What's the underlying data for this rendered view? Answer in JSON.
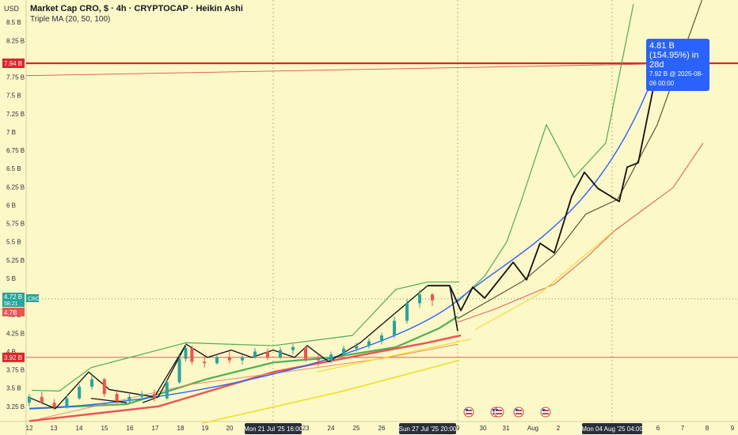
{
  "header": {
    "title": "Market Cap CRO, $ · 4h · CRYPTOCAP · Heikin Ashi",
    "indicator": "Triple MA (20, 50, 100)"
  },
  "currency": "USD",
  "price_tags": {
    "resistance": "7.94 B",
    "current": "4.72 B",
    "countdown": "58:21",
    "symbol": "CRO",
    "last": "4.7B",
    "support": "3.92 B"
  },
  "callout": {
    "line1": "4.81 B (154.95%) in 28d",
    "line2": "7.92 B @ 2025-08-06  00:00"
  },
  "x_highlights": [
    "Mon 21 Jul '25  16:00",
    "Sun 27 Jul '25  20:00",
    "Mon 04 Aug '25  04:00"
  ],
  "colors": {
    "background": "#fdf8c8",
    "resistance_line": "#e0242c",
    "support_line": "#e0242c",
    "projection_curve": "#2962ff",
    "callout": "#2962ff",
    "ma_green": "#4caf50",
    "ma_yellow": "#f0e020",
    "ma_red": "#ef5350",
    "candle_up": "#26a69a",
    "candle_down": "#ef5350"
  },
  "chart_data": {
    "type": "candlestick",
    "title": "Market Cap CRO, $ · 4h · CRYPTOCAP · Heikin Ashi",
    "y_unit": "B USD",
    "ylim": [
      3.0,
      8.85
    ],
    "y_ticks": [
      "3.25 B",
      "3.5 B",
      "3.75 B",
      "4 B",
      "4.25 B",
      "4.5 B",
      "4.75 B",
      "5 B",
      "5.25 B",
      "5.5 B",
      "5.75 B",
      "6 B",
      "6.25 B",
      "6.5 B",
      "6.75 B",
      "7 B",
      "7.25 B",
      "7.5 B",
      "7.75 B",
      "8 B",
      "8.25 B",
      "8.5 B"
    ],
    "x_ticks": [
      "12",
      "13",
      "14",
      "15",
      "16",
      "17",
      "18",
      "19",
      "20",
      "23",
      "24",
      "25",
      "26",
      "9",
      "30",
      "31",
      "Aug",
      "2",
      "6",
      "7",
      "8",
      "9"
    ],
    "horizontal_levels": [
      {
        "name": "resistance",
        "value": 7.94
      },
      {
        "name": "support",
        "value": 3.92
      }
    ],
    "projection_target": {
      "value": 7.92,
      "date": "2025-08-06 00:00",
      "change": "4.81 B (154.95%) in 28d"
    },
    "candles": [
      {
        "day": 12.0,
        "o": 3.3,
        "h": 3.42,
        "l": 3.25,
        "c": 3.38
      },
      {
        "day": 12.5,
        "o": 3.38,
        "h": 3.45,
        "l": 3.28,
        "c": 3.3
      },
      {
        "day": 13.0,
        "o": 3.3,
        "h": 3.35,
        "l": 3.2,
        "c": 3.24
      },
      {
        "day": 13.5,
        "o": 3.24,
        "h": 3.4,
        "l": 3.22,
        "c": 3.36
      },
      {
        "day": 14.0,
        "o": 3.36,
        "h": 3.55,
        "l": 3.34,
        "c": 3.52
      },
      {
        "day": 14.5,
        "o": 3.52,
        "h": 3.68,
        "l": 3.48,
        "c": 3.62
      },
      {
        "day": 15.0,
        "o": 3.62,
        "h": 3.64,
        "l": 3.38,
        "c": 3.42
      },
      {
        "day": 15.5,
        "o": 3.42,
        "h": 3.48,
        "l": 3.28,
        "c": 3.32
      },
      {
        "day": 16.0,
        "o": 3.32,
        "h": 3.42,
        "l": 3.3,
        "c": 3.38
      },
      {
        "day": 16.5,
        "o": 3.38,
        "h": 3.46,
        "l": 3.34,
        "c": 3.42
      },
      {
        "day": 17.0,
        "o": 3.42,
        "h": 3.48,
        "l": 3.32,
        "c": 3.36
      },
      {
        "day": 17.5,
        "o": 3.36,
        "h": 3.62,
        "l": 3.34,
        "c": 3.58
      },
      {
        "day": 18.0,
        "o": 3.58,
        "h": 3.95,
        "l": 3.56,
        "c": 3.9
      },
      {
        "day": 18.25,
        "o": 3.9,
        "h": 4.12,
        "l": 3.86,
        "c": 4.05
      },
      {
        "day": 18.5,
        "o": 4.05,
        "h": 4.08,
        "l": 3.82,
        "c": 3.86
      },
      {
        "day": 19.0,
        "o": 3.86,
        "h": 3.94,
        "l": 3.78,
        "c": 3.84
      },
      {
        "day": 19.5,
        "o": 3.84,
        "h": 3.96,
        "l": 3.82,
        "c": 3.92
      },
      {
        "day": 20.0,
        "o": 3.92,
        "h": 4.0,
        "l": 3.84,
        "c": 3.88
      },
      {
        "day": 20.5,
        "o": 3.88,
        "h": 3.96,
        "l": 3.82,
        "c": 3.92
      },
      {
        "day": 21.0,
        "o": 3.92,
        "h": 4.05,
        "l": 3.9,
        "c": 4.0
      },
      {
        "day": 21.5,
        "o": 4.0,
        "h": 4.04,
        "l": 3.88,
        "c": 3.92
      },
      {
        "day": 22.0,
        "o": 3.92,
        "h": 4.06,
        "l": 3.9,
        "c": 4.02
      },
      {
        "day": 22.5,
        "o": 4.02,
        "h": 4.1,
        "l": 3.96,
        "c": 4.06
      },
      {
        "day": 23.0,
        "o": 4.06,
        "h": 4.08,
        "l": 3.86,
        "c": 3.9
      },
      {
        "day": 23.5,
        "o": 3.9,
        "h": 3.96,
        "l": 3.8,
        "c": 3.88
      },
      {
        "day": 24.0,
        "o": 3.88,
        "h": 4.0,
        "l": 3.84,
        "c": 3.96
      },
      {
        "day": 24.5,
        "o": 3.96,
        "h": 4.08,
        "l": 3.94,
        "c": 4.04
      },
      {
        "day": 25.0,
        "o": 4.04,
        "h": 4.12,
        "l": 4.0,
        "c": 4.08
      },
      {
        "day": 25.5,
        "o": 4.08,
        "h": 4.18,
        "l": 4.04,
        "c": 4.14
      },
      {
        "day": 26.0,
        "o": 4.14,
        "h": 4.26,
        "l": 4.1,
        "c": 4.22
      },
      {
        "day": 26.5,
        "o": 4.22,
        "h": 4.48,
        "l": 4.18,
        "c": 4.42
      },
      {
        "day": 27.0,
        "o": 4.42,
        "h": 4.72,
        "l": 4.38,
        "c": 4.66
      },
      {
        "day": 27.5,
        "o": 4.66,
        "h": 4.84,
        "l": 4.6,
        "c": 4.78
      },
      {
        "day": 28.0,
        "o": 4.78,
        "h": 4.8,
        "l": 4.62,
        "c": 4.7
      }
    ]
  }
}
